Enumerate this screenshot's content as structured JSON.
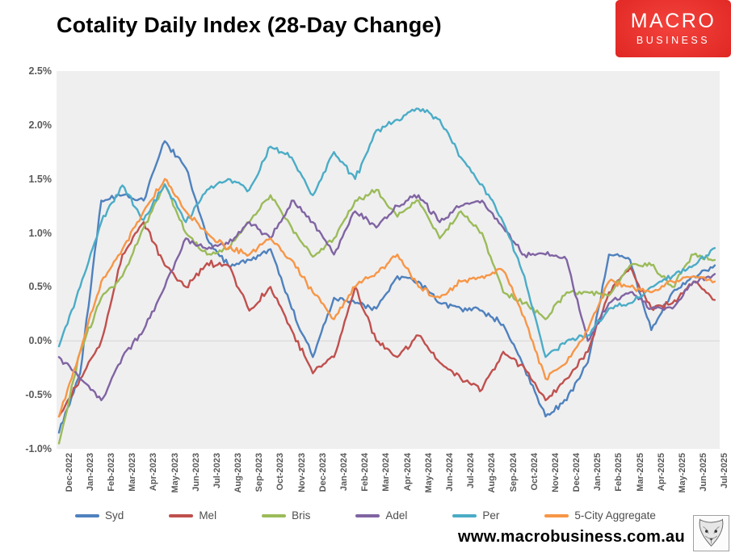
{
  "logo": {
    "line1": "MACRO",
    "line2": "BUSINESS"
  },
  "footer": {
    "website": "www.macrobusiness.com.au"
  },
  "chart_data": {
    "type": "line",
    "title": "Cotality Daily Index (28-Day Change)",
    "ylabel": "",
    "xlabel": "",
    "ylim": [
      -1.0,
      2.5
    ],
    "grid": "zero-line-only",
    "legend_position": "bottom",
    "plot_bg": "#efeff0",
    "zero_line_color": "#d5d5d5",
    "yticks": [
      2.5,
      2.0,
      1.5,
      1.0,
      0.5,
      0.0,
      -0.5,
      -1.0
    ],
    "ytick_labels": [
      "2.5%",
      "2.0%",
      "1.5%",
      "1.0%",
      "0.5%",
      "0.0%",
      "-0.5%",
      "-1.0%"
    ],
    "x": [
      "Dec-2022",
      "Jan-2023",
      "Feb-2023",
      "Mar-2023",
      "Apr-2023",
      "May-2023",
      "Jun-2023",
      "Jul-2023",
      "Aug-2023",
      "Sep-2023",
      "Oct-2023",
      "Nov-2023",
      "Dec-2023",
      "Jan-2024",
      "Feb-2024",
      "Mar-2024",
      "Apr-2024",
      "May-2024",
      "Jun-2024",
      "Jul-2024",
      "Aug-2024",
      "Sep-2024",
      "Oct-2024",
      "Nov-2024",
      "Dec-2024",
      "Jan-2025",
      "Feb-2025",
      "Mar-2025",
      "Apr-2025",
      "May-2025",
      "Jun-2025",
      "Jul-2025"
    ],
    "series": [
      {
        "name": "Syd",
        "color": "#4F81BD",
        "values": [
          -0.85,
          -0.3,
          1.3,
          1.35,
          1.3,
          1.85,
          1.6,
          0.95,
          0.7,
          0.75,
          0.85,
          0.3,
          -0.15,
          0.4,
          0.35,
          0.3,
          0.6,
          0.55,
          0.35,
          0.3,
          0.28,
          0.15,
          -0.25,
          -0.7,
          -0.55,
          -0.2,
          0.8,
          0.75,
          0.1,
          0.45,
          0.6,
          0.7
        ]
      },
      {
        "name": "Mel",
        "color": "#C0504D",
        "values": [
          -0.7,
          -0.35,
          0.0,
          0.8,
          1.1,
          0.7,
          0.5,
          0.72,
          0.7,
          0.28,
          0.5,
          0.1,
          -0.3,
          -0.15,
          0.5,
          0.0,
          -0.15,
          0.05,
          -0.2,
          -0.35,
          -0.45,
          -0.1,
          -0.25,
          -0.55,
          -0.35,
          -0.1,
          0.45,
          0.68,
          0.3,
          0.35,
          0.55,
          0.38
        ]
      },
      {
        "name": "Bris",
        "color": "#9BBB59",
        "values": [
          -0.95,
          -0.1,
          0.4,
          0.6,
          1.05,
          1.45,
          1.0,
          0.8,
          0.85,
          1.1,
          1.35,
          1.05,
          0.78,
          0.95,
          1.3,
          1.4,
          1.15,
          1.3,
          0.95,
          1.2,
          1.0,
          0.45,
          0.35,
          0.2,
          0.45,
          0.45,
          0.42,
          0.7,
          0.7,
          0.5,
          0.8,
          0.75
        ]
      },
      {
        "name": "Adel",
        "color": "#8064A2",
        "values": [
          -0.15,
          -0.35,
          -0.55,
          -0.15,
          0.1,
          0.5,
          0.95,
          0.85,
          0.9,
          1.1,
          0.95,
          1.3,
          1.1,
          0.8,
          1.2,
          1.05,
          1.25,
          1.35,
          1.1,
          1.25,
          1.3,
          1.05,
          0.8,
          0.8,
          0.75,
          0.0,
          0.35,
          0.45,
          0.3,
          0.3,
          0.55,
          0.62
        ]
      },
      {
        "name": "Per",
        "color": "#4BACC6",
        "values": [
          -0.05,
          0.5,
          1.1,
          1.44,
          1.12,
          1.45,
          1.1,
          1.4,
          1.5,
          1.4,
          1.8,
          1.7,
          1.35,
          1.75,
          1.5,
          1.95,
          2.05,
          2.15,
          2.05,
          1.7,
          1.45,
          1.1,
          0.6,
          -0.15,
          0.0,
          0.05,
          0.3,
          0.35,
          0.5,
          0.6,
          0.7,
          0.86
        ]
      },
      {
        "name": "5-City Aggregate",
        "color": "#F79646",
        "values": [
          -0.7,
          -0.1,
          0.55,
          0.85,
          1.2,
          1.5,
          1.2,
          1.0,
          0.86,
          0.8,
          0.95,
          0.75,
          0.45,
          0.2,
          0.5,
          0.63,
          0.8,
          0.5,
          0.4,
          0.55,
          0.6,
          0.65,
          0.22,
          -0.35,
          -0.2,
          0.1,
          0.55,
          0.5,
          0.45,
          0.55,
          0.6,
          0.55
        ]
      }
    ]
  }
}
